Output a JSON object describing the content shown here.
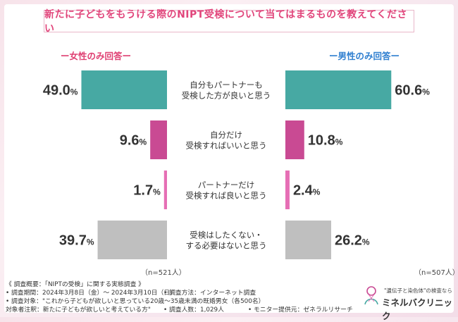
{
  "title": "新たに子どもをもうける際のNIPT受検について当てはまるものを教えてください",
  "female_label": "ー女性のみ回答ー",
  "male_label": "ー男性のみ回答ー",
  "female_n": "（n=521人）",
  "male_n": "（n=507人）",
  "footnotes": {
    "line1": "《 調査概要：「NIPTの受検」に関する実態調査 》",
    "line2": "• 調査期間：2024年3月8日（金）〜 2024年3月10日（日）",
    "line2b": "• 調査方法：インターネット調査",
    "line3": "• 調査対象：\"これから子どもが欲しいと思っている20歳〜35歳未満の既婚男女（各500名）",
    "line4": "対象者注釈：新たに子どもが欲しいと考えている方\"",
    "line4b": "• 調査人数：1,029人",
    "line4c": "• モニター提供元：ゼネラルリサーチ"
  },
  "brand": {
    "sub": "\"遺伝子と染色体\"の検査なら",
    "name": "ミネルバクリニック"
  },
  "chart_data": {
    "type": "bar",
    "orientation": "horizontal-butterfly",
    "unit": "%",
    "categories": [
      "自分もパートナーも\n受検した方が良いと思う",
      "自分だけ\n受検すればいいと思う",
      "パートナーだけ\n受検すれば良いと思う",
      "受検はしたくない・\nする必要はないと思う"
    ],
    "series": [
      {
        "name": "女性のみ回答",
        "values": [
          49.0,
          9.6,
          1.7,
          39.7
        ]
      },
      {
        "name": "男性のみ回答",
        "values": [
          60.6,
          10.8,
          2.4,
          26.2
        ]
      }
    ],
    "colors": [
      "#47a9a3",
      "#c94a93",
      "#e66fb5",
      "#bfbfbf"
    ],
    "xlim": [
      0,
      100
    ],
    "grid": false,
    "legend": "none"
  }
}
